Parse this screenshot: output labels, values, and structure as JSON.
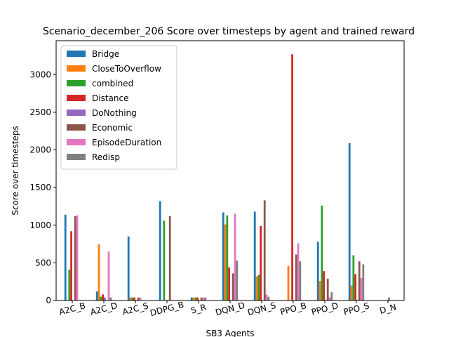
{
  "chart_data": {
    "type": "bar",
    "title": "Scenario_december_206 Score over timesteps by agent and trained reward",
    "xlabel": "SB3 Agents",
    "ylabel": "Score over timesteps",
    "ylim": [
      0,
      3450
    ],
    "yticks": [
      0,
      500,
      1000,
      1500,
      2000,
      2500,
      3000
    ],
    "grid": false,
    "legend_position": "upper-left",
    "categories": [
      "A2C_B",
      "A2C_D",
      "A2C_S",
      "DDPG_B",
      "S_R",
      "DQN_D",
      "DQN_S",
      "PPO_B",
      "PPO_D",
      "PPO_S",
      "D_N"
    ],
    "series": [
      {
        "name": "Bridge",
        "color": "#1f77b4",
        "values": [
          1140,
          120,
          850,
          1320,
          40,
          1170,
          1180,
          0,
          780,
          2090,
          0
        ]
      },
      {
        "name": "CloseToOverflow",
        "color": "#ff7f0e",
        "values": [
          0,
          745,
          40,
          0,
          40,
          1010,
          320,
          460,
          260,
          200,
          0
        ]
      },
      {
        "name": "combined",
        "color": "#2ca02c",
        "values": [
          410,
          50,
          40,
          1060,
          40,
          1130,
          340,
          0,
          1260,
          600,
          0
        ]
      },
      {
        "name": "Distance",
        "color": "#d62728",
        "values": [
          920,
          80,
          40,
          0,
          40,
          440,
          990,
          3270,
          390,
          350,
          0
        ]
      },
      {
        "name": "DoNothing",
        "color": "#9467bd",
        "values": [
          0,
          40,
          0,
          0,
          0,
          0,
          0,
          0,
          0,
          0,
          40
        ]
      },
      {
        "name": "Economic",
        "color": "#8c564b",
        "values": [
          1120,
          0,
          40,
          1120,
          40,
          360,
          1330,
          610,
          290,
          520,
          0
        ]
      },
      {
        "name": "EpisodeDuration",
        "color": "#e377c2",
        "values": [
          1130,
          650,
          40,
          0,
          40,
          1150,
          80,
          760,
          40,
          300,
          0
        ]
      },
      {
        "name": "Redisp",
        "color": "#7f7f7f",
        "values": [
          0,
          40,
          0,
          0,
          40,
          530,
          50,
          520,
          110,
          480,
          0
        ]
      }
    ]
  }
}
